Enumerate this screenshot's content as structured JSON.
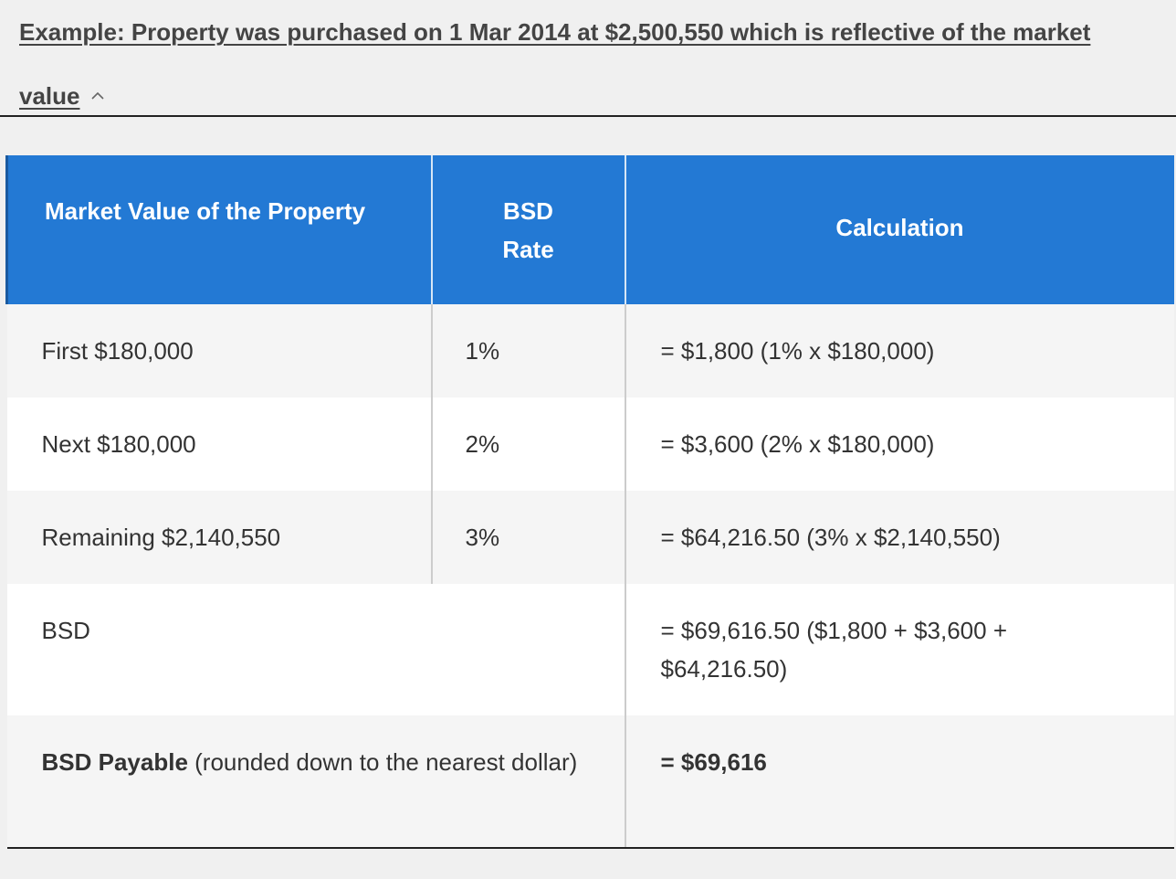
{
  "accordion": {
    "title_line": "Example: Property was purchased on 1 Mar 2014 at $2,500,550 which is reflective of the market value",
    "chevron_icon": "chevron-up-icon",
    "expanded": true
  },
  "table": {
    "headers": {
      "market_value": "Market Value of the Property",
      "rate_line1": "BSD",
      "rate_line2": "Rate",
      "calculation": "Calculation"
    },
    "rows": [
      {
        "market_value": "First $180,000",
        "rate": "1%",
        "calculation": "= $1,800 (1% x $180,000)"
      },
      {
        "market_value": "Next $180,000",
        "rate": "2%",
        "calculation": "= $3,600 (2% x $180,000)"
      },
      {
        "market_value": "Remaining $2,140,550",
        "rate": "3%",
        "calculation": "= $64,216.50 (3% x $2,140,550)"
      },
      {
        "market_value": "BSD",
        "rate": "",
        "calculation": "= $69,616.50 ($1,800 + $3,600 + $64,216.50)"
      }
    ],
    "payable_row": {
      "label_bold": "BSD Payable",
      "label_rest": " (rounded down to the nearest dollar)",
      "calculation": "= $69,616"
    }
  },
  "colors": {
    "header_bg": "#2379d4",
    "header_text": "#ffffff",
    "row_alt_bg": "#f5f5f5",
    "page_bg": "#f0f0f0"
  }
}
